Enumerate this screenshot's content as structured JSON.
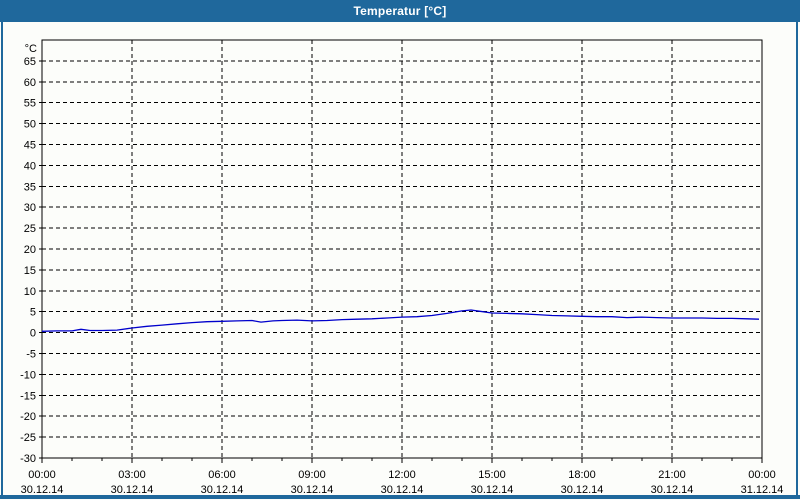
{
  "window": {
    "title": "Temperatur [°C]",
    "titlebar_color": "#1f689c",
    "border_color": "#1f689c",
    "content_background": "#fcfdfa",
    "title_text_color": "#ffffff"
  },
  "chart_data": {
    "type": "line",
    "title": "Temperatur [°C]",
    "ylabel": "°C",
    "xlabel": "",
    "ylim": [
      -30,
      70
    ],
    "y_tick_step": 5,
    "y_tick_min": -30,
    "y_tick_max": 65,
    "x_hours_range": [
      0,
      24
    ],
    "x_major_step_hours": 3,
    "x_minor_step_hours": 1,
    "grid": {
      "style": "dashed",
      "color": "#000000"
    },
    "axis_color": "#000000",
    "legend_position": "none",
    "x_axis_labels": [
      {
        "time": "00:00",
        "date": "30.12.14"
      },
      {
        "time": "03:00",
        "date": "30.12.14"
      },
      {
        "time": "06:00",
        "date": "30.12.14"
      },
      {
        "time": "09:00",
        "date": "30.12.14"
      },
      {
        "time": "12:00",
        "date": "30.12.14"
      },
      {
        "time": "15:00",
        "date": "30.12.14"
      },
      {
        "time": "18:00",
        "date": "30.12.14"
      },
      {
        "time": "21:00",
        "date": "30.12.14"
      },
      {
        "time": "00:00",
        "date": "31.12.14"
      }
    ],
    "series": [
      {
        "name": "Temperatur",
        "color": "#0000cc",
        "points": [
          [
            0,
            0.3
          ],
          [
            0.5,
            0.4
          ],
          [
            1,
            0.4
          ],
          [
            1.3,
            0.8
          ],
          [
            1.6,
            0.5
          ],
          [
            2,
            0.5
          ],
          [
            2.5,
            0.6
          ],
          [
            3,
            1.1
          ],
          [
            3.5,
            1.5
          ],
          [
            4,
            1.8
          ],
          [
            4.5,
            2.1
          ],
          [
            5,
            2.4
          ],
          [
            5.5,
            2.6
          ],
          [
            6,
            2.7
          ],
          [
            6.5,
            2.8
          ],
          [
            7,
            2.9
          ],
          [
            7.3,
            2.5
          ],
          [
            7.7,
            2.8
          ],
          [
            8,
            2.9
          ],
          [
            8.5,
            3.0
          ],
          [
            9,
            2.8
          ],
          [
            9.5,
            2.9
          ],
          [
            10,
            3.1
          ],
          [
            10.5,
            3.2
          ],
          [
            11,
            3.3
          ],
          [
            11.5,
            3.5
          ],
          [
            12,
            3.7
          ],
          [
            12.5,
            3.8
          ],
          [
            13,
            4.1
          ],
          [
            13.5,
            4.6
          ],
          [
            14,
            5.2
          ],
          [
            14.3,
            5.4
          ],
          [
            14.6,
            5.1
          ],
          [
            15,
            4.7
          ],
          [
            15.5,
            4.6
          ],
          [
            16,
            4.5
          ],
          [
            16.5,
            4.3
          ],
          [
            17,
            4.1
          ],
          [
            17.5,
            4.0
          ],
          [
            18,
            3.9
          ],
          [
            18.5,
            3.8
          ],
          [
            19,
            3.8
          ],
          [
            19.5,
            3.6
          ],
          [
            20,
            3.7
          ],
          [
            20.5,
            3.6
          ],
          [
            21,
            3.5
          ],
          [
            21.5,
            3.5
          ],
          [
            22,
            3.5
          ],
          [
            22.5,
            3.4
          ],
          [
            23,
            3.4
          ],
          [
            23.5,
            3.3
          ],
          [
            23.9,
            3.2
          ]
        ]
      }
    ]
  }
}
